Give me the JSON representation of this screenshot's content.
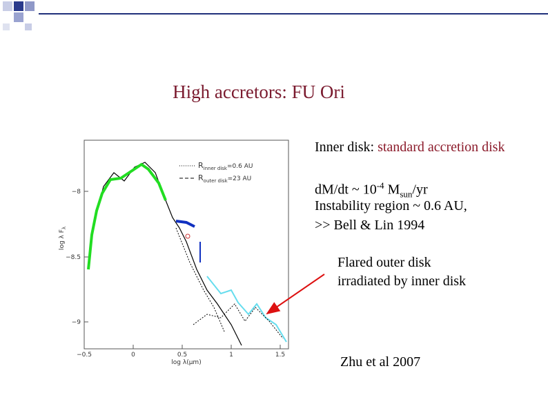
{
  "slide": {
    "title": "High accretors: FU Ori",
    "notes": {
      "inner_label": "Inner disk: ",
      "inner_highlight": "standard accretion disk",
      "mdot_prefix": "dM/dt ~ 10",
      "mdot_exp": "-4",
      "mdot_mid": " M",
      "mdot_sub": "sun",
      "mdot_suffix": "/yr",
      "instability": "Instability region ~ 0.6 AU,",
      "reference": ">> Bell & Lin 1994"
    },
    "annotation": [
      "Flared outer disk",
      "irradiated by inner disk"
    ],
    "citation": "Zhu et al 2007",
    "figure": {
      "y_axis_label": "log λ F",
      "y_axis_sub": "λ",
      "x_axis_label": "log λ(μm)",
      "y_tick_labels": [
        "−8",
        "−8.5",
        "−9"
      ],
      "x_tick_labels": [
        "−0.5",
        "0",
        "0.5",
        "1",
        "1.5"
      ],
      "legend": [
        {
          "symbol": "R",
          "sub": "inner disk",
          "text": "=0.6 AU"
        },
        {
          "symbol": "R",
          "sub": "outer disk",
          "text": "=23 AU"
        }
      ]
    }
  }
}
